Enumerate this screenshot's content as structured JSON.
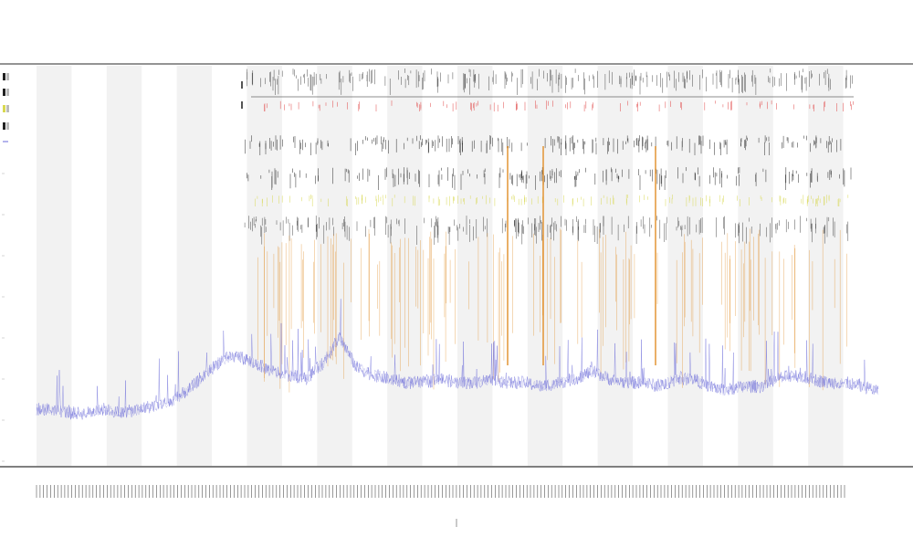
{
  "chart_data": {
    "type": "line",
    "title": "",
    "subtitle_lines": [],
    "legend_placement": "top-left",
    "grid": false,
    "colors": {
      "main_series": "#6a6ad8",
      "event_orange": "#e08a20",
      "event_black": "#222222",
      "event_yellow": "#d8d850",
      "event_red": "#e04040",
      "band_fill": "#f2f2f2"
    },
    "x": {
      "range": [
        0,
        1
      ],
      "band_count": 12,
      "tick_label_count": 230
    },
    "y": {
      "range": [
        0,
        1
      ]
    },
    "series": [
      {
        "values": [
          0.1,
          0.1,
          0.09,
          0.09,
          0.1,
          0.09,
          0.1,
          0.11,
          0.12,
          0.15,
          0.19,
          0.23,
          0.24,
          0.22,
          0.2,
          0.19,
          0.18,
          0.22,
          0.29,
          0.21,
          0.19,
          0.18,
          0.17,
          0.17,
          0.18,
          0.17,
          0.17,
          0.18,
          0.17,
          0.17,
          0.16,
          0.17,
          0.18,
          0.2,
          0.18,
          0.17,
          0.17,
          0.16,
          0.18,
          0.18,
          0.16,
          0.15,
          0.16,
          0.16,
          0.18,
          0.19,
          0.18,
          0.17,
          0.17,
          0.16,
          0.15
        ]
      }
    ]
  }
}
